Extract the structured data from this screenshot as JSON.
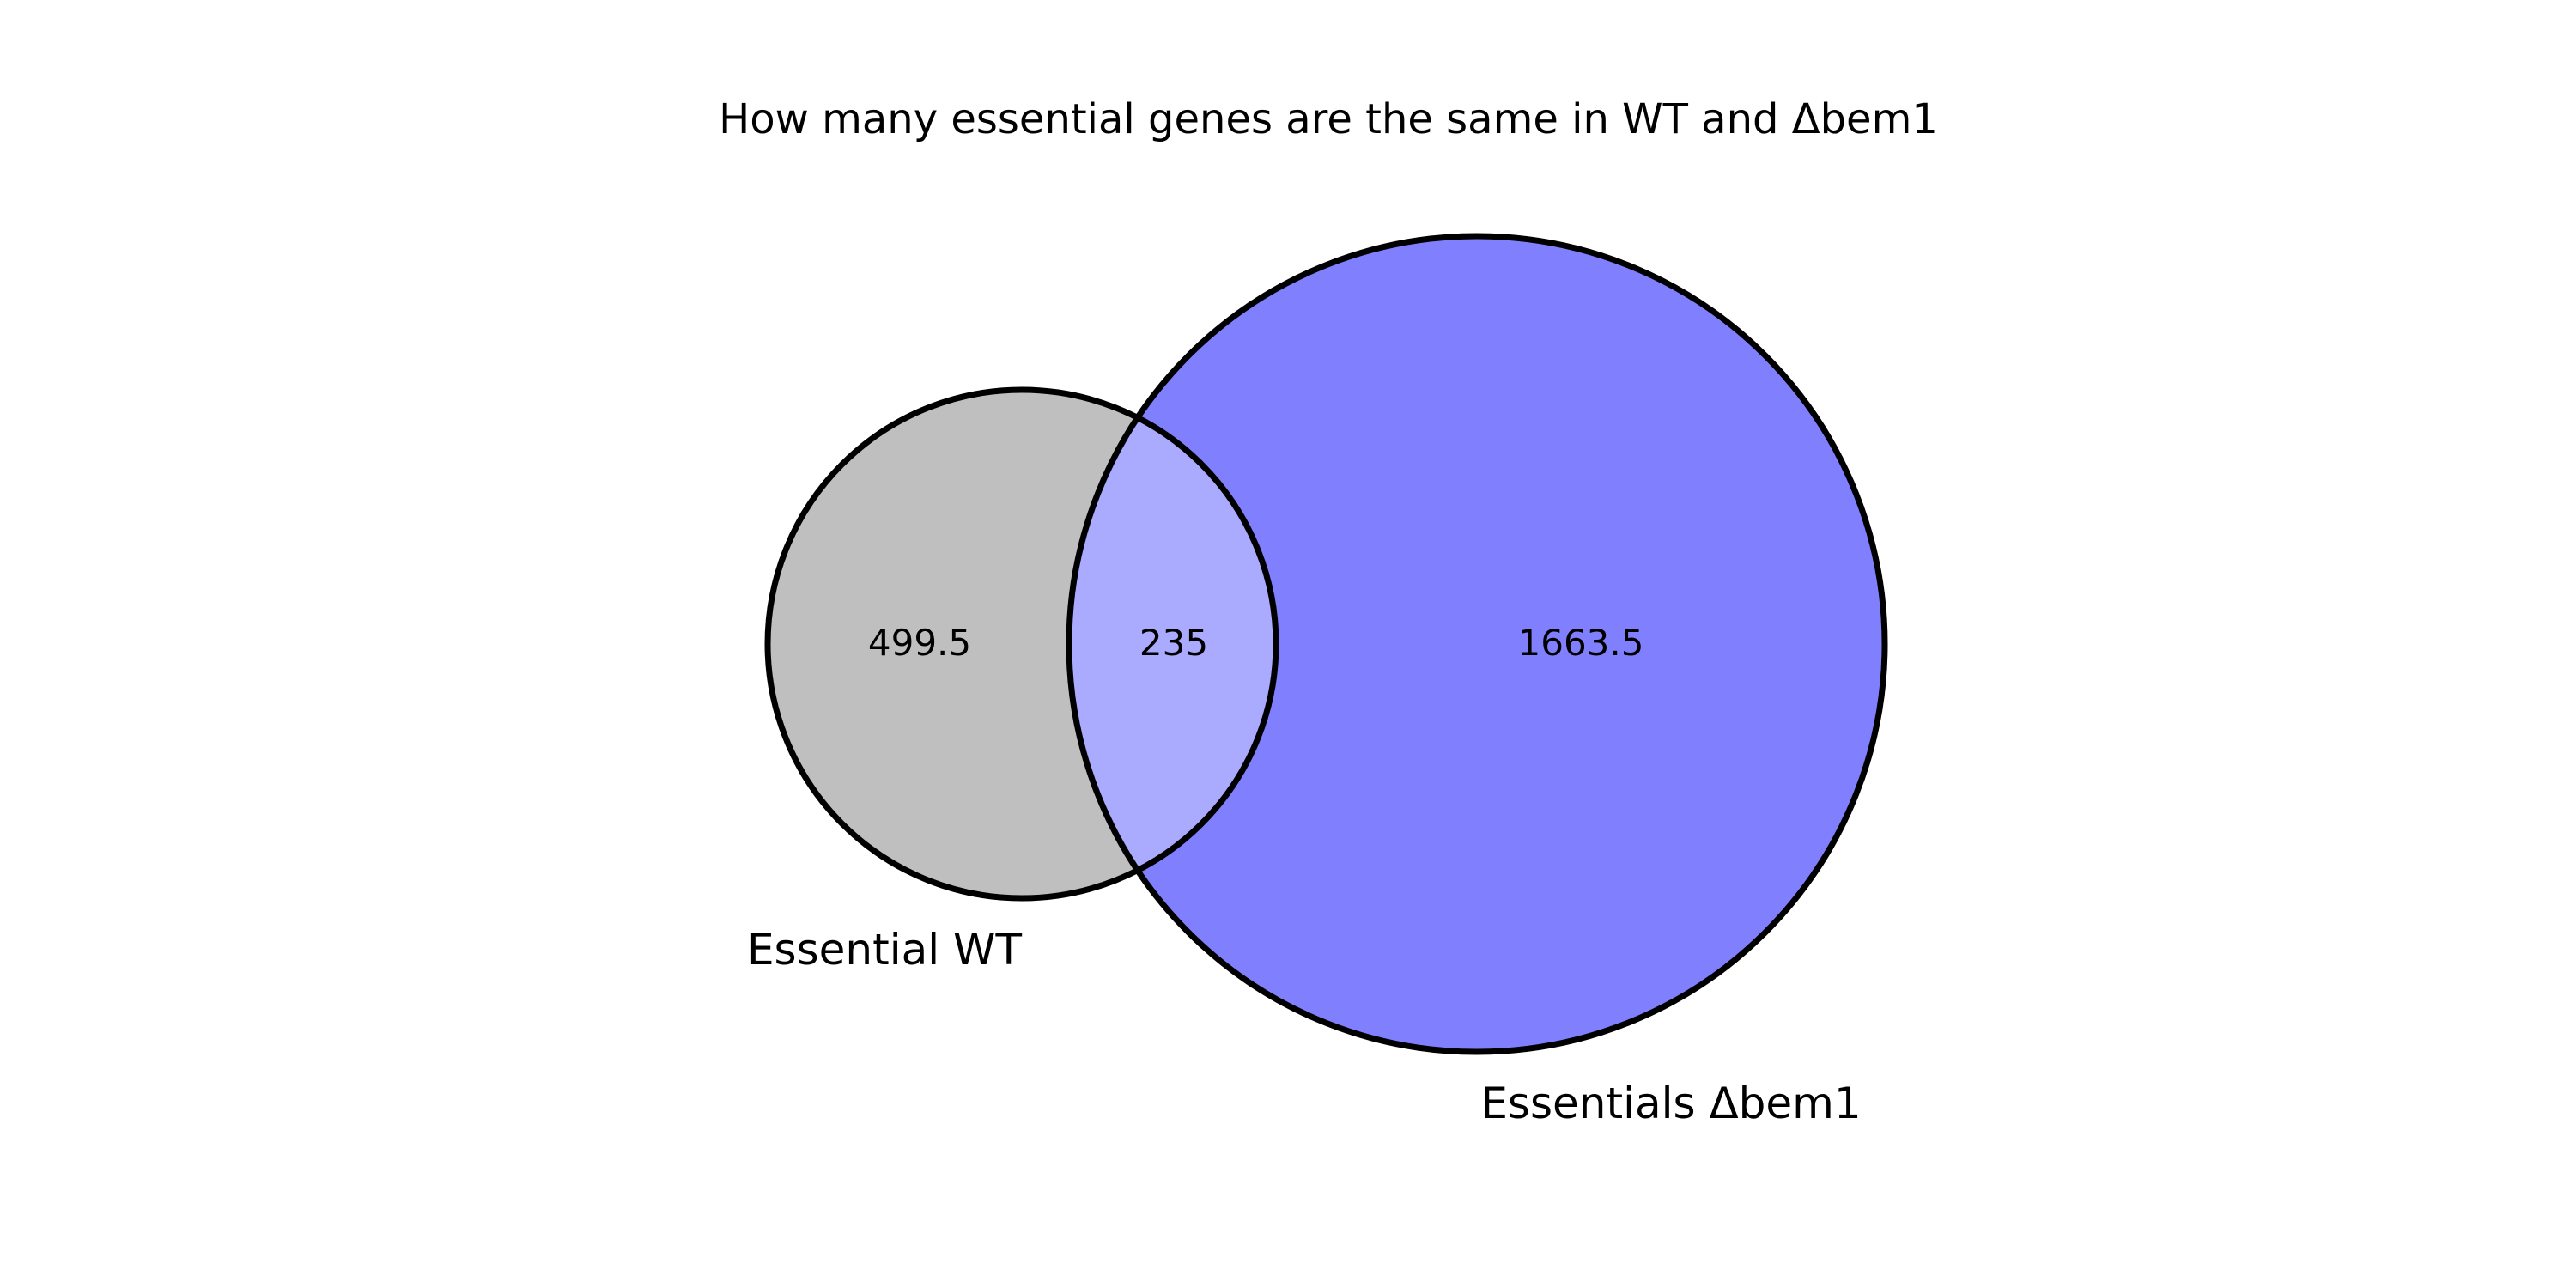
{
  "chart_data": {
    "type": "venn",
    "title": "How many essential genes are the same in WT and Δbem1",
    "sets": [
      {
        "label": "Essential WT",
        "color": "#bfbfbf"
      },
      {
        "label": "Essentials Δbem1",
        "color": "#8080ff"
      }
    ],
    "intersection_color": "#aaaaff",
    "regions": {
      "only_a": "499.5",
      "intersection": "235",
      "only_b": "1663.5"
    },
    "values": {
      "only_a": 499.5,
      "intersection": 235,
      "only_b": 1663.5
    }
  }
}
